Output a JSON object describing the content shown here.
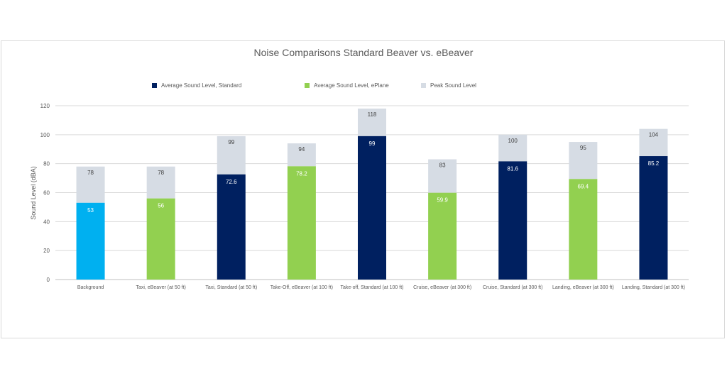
{
  "chart_data": {
    "type": "bar",
    "stacked": "overlay",
    "title": "Noise Comparisons Standard Beaver vs. eBeaver",
    "xlabel": "",
    "ylabel": "Sound Level (dBA)",
    "ylim": [
      0,
      120
    ],
    "yticks": [
      0,
      20,
      40,
      60,
      80,
      100,
      120
    ],
    "grid": true,
    "legend_position": "top",
    "categories": [
      "Background",
      "Taxi, eBeaver (at 50 ft)",
      "Taxi, Standard (at 50 ft)",
      "Take-Off, eBeaver (at 100 ft)",
      "Take-off, Standard (at 100 ft)",
      "Cruise, eBeaver (at 300 ft)",
      "Cruise, Standard (at 300 ft)",
      "Landing, eBeaver (at 300 ft)",
      "Landing, Standard (at 300 ft)"
    ],
    "legend": [
      {
        "name": "Average Sound Level, Standard",
        "color": "#002060"
      },
      {
        "name": "Average Sound Level, ePlane",
        "color": "#92d050"
      },
      {
        "name": "Peak Sound Level",
        "color": "#d6dce4"
      }
    ],
    "average_values": [
      53,
      56,
      72.6,
      78.2,
      99,
      59.9,
      81.6,
      69.4,
      85.2
    ],
    "average_labels": [
      "53",
      "56",
      "72.6",
      "78.2",
      "99",
      "59.9",
      "81.6",
      "69.4",
      "85.2"
    ],
    "average_colors": [
      "#00b0f0",
      "#92d050",
      "#002060",
      "#92d050",
      "#002060",
      "#92d050",
      "#002060",
      "#92d050",
      "#002060"
    ],
    "peak_values": [
      78,
      78,
      99,
      94,
      118,
      83,
      100,
      95,
      104
    ],
    "peak_labels": [
      "78",
      "78",
      "99",
      "94",
      "118",
      "83",
      "100",
      "95",
      "104"
    ],
    "peak_color": "#d6dce4"
  }
}
